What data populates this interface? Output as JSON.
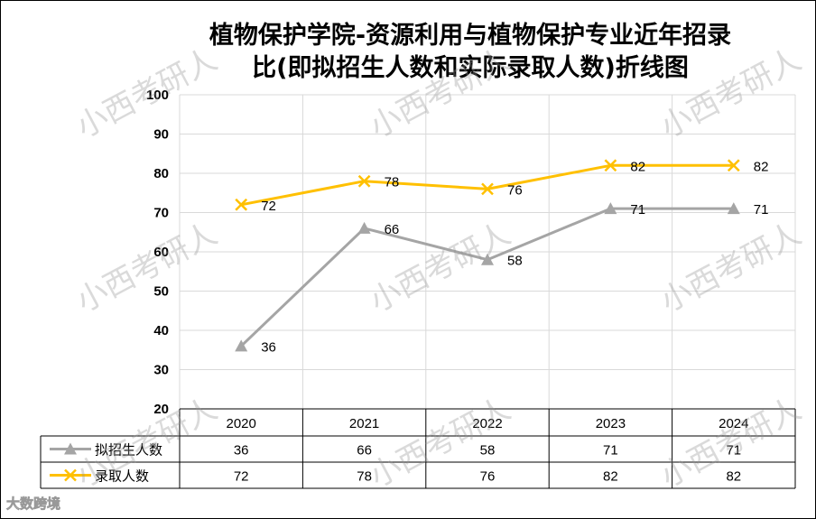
{
  "title_line1": "植物保护学院-资源利用与植物保护专业近年招录",
  "title_line2": "比(即拟招生人数和实际录取人数)折线图",
  "watermark": "小西考研人",
  "logo": "大数跨境",
  "chart_data": {
    "type": "line",
    "title": "植物保护学院-资源利用与植物保护专业近年招录比(即拟招生人数和实际录取人数)折线图",
    "categories": [
      "2020",
      "2021",
      "2022",
      "2023",
      "2024"
    ],
    "ylim": [
      20,
      100
    ],
    "yticks": [
      20,
      30,
      40,
      50,
      60,
      70,
      80,
      90,
      100
    ],
    "grid": true,
    "xlabel": "",
    "ylabel": "",
    "legend": "data-table-bottom",
    "series": [
      {
        "name": "拟招生人数",
        "values": [
          36,
          66,
          58,
          71,
          71
        ],
        "color": "#a5a5a5",
        "marker": "triangle"
      },
      {
        "name": "录取人数",
        "values": [
          72,
          78,
          76,
          82,
          82
        ],
        "color": "#ffc000",
        "marker": "x"
      }
    ]
  }
}
